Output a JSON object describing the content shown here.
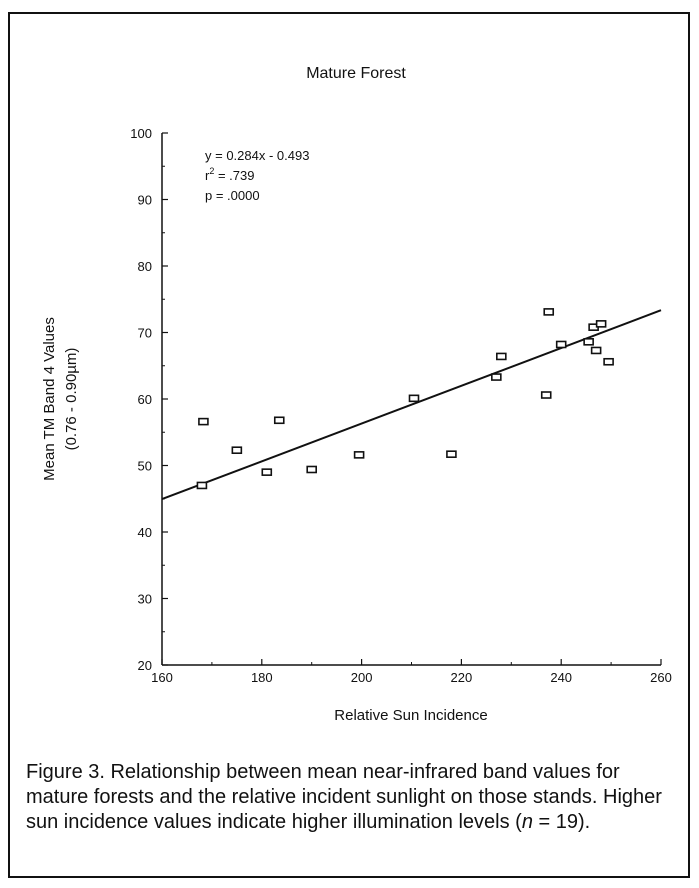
{
  "chart_data": {
    "type": "scatter",
    "title": "Mature Forest",
    "xlabel": "Relative Sun Incidence",
    "ylabel": "Mean TM Band 4 Values",
    "ylabel2": "(0.76 - 0.90µm)",
    "xlim": [
      160,
      260
    ],
    "ylim": [
      20,
      100
    ],
    "xticks": [
      "160",
      "180",
      "200",
      "220",
      "240",
      "260"
    ],
    "yticks": [
      "20",
      "30",
      "40",
      "50",
      "60",
      "70",
      "80",
      "90",
      "100"
    ],
    "points": [
      {
        "x": 168.0,
        "y": 47.0
      },
      {
        "x": 168.3,
        "y": 56.6
      },
      {
        "x": 175.0,
        "y": 52.3
      },
      {
        "x": 181.0,
        "y": 49.0
      },
      {
        "x": 183.5,
        "y": 56.8
      },
      {
        "x": 190.0,
        "y": 49.4
      },
      {
        "x": 199.5,
        "y": 51.6
      },
      {
        "x": 210.5,
        "y": 60.1
      },
      {
        "x": 218.0,
        "y": 51.7
      },
      {
        "x": 227.0,
        "y": 63.3
      },
      {
        "x": 228.0,
        "y": 66.4
      },
      {
        "x": 237.0,
        "y": 60.6
      },
      {
        "x": 237.5,
        "y": 73.1
      },
      {
        "x": 240.0,
        "y": 68.2
      },
      {
        "x": 245.5,
        "y": 68.6
      },
      {
        "x": 246.5,
        "y": 70.8
      },
      {
        "x": 247.0,
        "y": 67.3
      },
      {
        "x": 248.0,
        "y": 71.3
      },
      {
        "x": 249.5,
        "y": 65.6
      }
    ],
    "regression": {
      "slope": 0.284,
      "intercept": -0.493
    },
    "annotations": {
      "equation": "y = 0.284x - 0.493",
      "r2_prefix": "r",
      "r2_sup": "2",
      "r2_value": " = .739",
      "p_value": "p = .0000"
    }
  },
  "caption": {
    "text_1": "Figure 3. Relationship between mean near-infrared band values for mature forests and the relative incident sunlight on those stands. Higher sun incidence values indicate higher illumination levels (",
    "n_symbol": "n",
    "text_2": " = 19)."
  }
}
